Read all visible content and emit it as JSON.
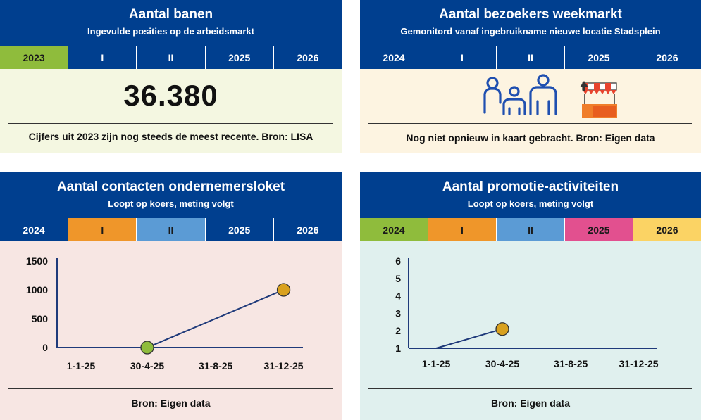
{
  "panels": {
    "jobs": {
      "title": "Aantal banen",
      "subtitle": "Ingevulde posities op de arbeidsmarkt",
      "tabs": [
        {
          "label": "2023",
          "color": "#8fbc3c",
          "text_dark": true
        },
        {
          "label": "I",
          "color": "#003f8f",
          "text_dark": false
        },
        {
          "label": "II",
          "color": "#003f8f",
          "text_dark": false
        },
        {
          "label": "2025",
          "color": "#003f8f",
          "text_dark": false
        },
        {
          "label": "2026",
          "color": "#003f8f",
          "text_dark": false
        }
      ],
      "value": "36.380",
      "note": "Cijfers uit 2023 zijn nog steeds de meest recente. Bron: LISA"
    },
    "market": {
      "title": "Aantal bezoekers weekmarkt",
      "subtitle": "Gemonitord vanaf ingebruikname nieuwe locatie Stadsplein",
      "tabs": [
        {
          "label": "2024",
          "color": "#003f8f",
          "text_dark": false
        },
        {
          "label": "I",
          "color": "#003f8f",
          "text_dark": false
        },
        {
          "label": "II",
          "color": "#003f8f",
          "text_dark": false
        },
        {
          "label": "2025",
          "color": "#003f8f",
          "text_dark": false
        },
        {
          "label": "2026",
          "color": "#003f8f",
          "text_dark": false
        }
      ],
      "icons": [
        "people-group-icon",
        "market-stall-icon"
      ],
      "note": "Nog niet opnieuw in kaart gebracht. Bron: Eigen data"
    },
    "contacts": {
      "title": "Aantal contacten ondernemersloket",
      "subtitle": "Loopt op koers, meting volgt",
      "tabs": [
        {
          "label": "2024",
          "color": "#003f8f",
          "text_dark": false
        },
        {
          "label": "I",
          "color": "#ef962a",
          "text_dark": true
        },
        {
          "label": "II",
          "color": "#5b9bd5",
          "text_dark": true
        },
        {
          "label": "2025",
          "color": "#003f8f",
          "text_dark": false
        },
        {
          "label": "2026",
          "color": "#003f8f",
          "text_dark": false
        }
      ],
      "note": "Bron: Eigen data"
    },
    "promo": {
      "title": "Aantal promotie-activiteiten",
      "subtitle": "Loopt op koers, meting volgt",
      "tabs": [
        {
          "label": "2024",
          "color": "#8fbc3c",
          "text_dark": true
        },
        {
          "label": "I",
          "color": "#ef962a",
          "text_dark": true
        },
        {
          "label": "II",
          "color": "#5b9bd5",
          "text_dark": true
        },
        {
          "label": "2025",
          "color": "#e2508f",
          "text_dark": true
        },
        {
          "label": "2026",
          "color": "#fbd364",
          "text_dark": true
        }
      ],
      "note": "Bron: Eigen data"
    }
  },
  "colors": {
    "header": "#003f8f",
    "line": "#1f3a7a",
    "marker_green": "#8fbc3c",
    "marker_orange": "#d9a11e"
  },
  "chart_data": [
    {
      "type": "line",
      "title": "Aantal contacten ondernemersloket",
      "categories": [
        "1-1-25",
        "30-4-25",
        "31-8-25",
        "31-12-25"
      ],
      "x": [
        0,
        119,
        242,
        364
      ],
      "ylim": [
        0,
        1500
      ],
      "yticks": [
        0,
        500,
        1000,
        1500
      ],
      "series": [
        {
          "name": "contacten",
          "points": [
            {
              "x": 0,
              "y": 0
            },
            {
              "x": 119,
              "y": 0
            },
            {
              "x": 364,
              "y": 1000
            }
          ]
        }
      ],
      "markers": [
        {
          "x": 119,
          "y": 0,
          "color": "#8fbc3c"
        },
        {
          "x": 364,
          "y": 1000,
          "color": "#d9a11e"
        }
      ]
    },
    {
      "type": "line",
      "title": "Aantal promotie-activiteiten",
      "categories": [
        "1-1-25",
        "30-4-25",
        "31-8-25",
        "31-12-25"
      ],
      "x": [
        0,
        119,
        242,
        364
      ],
      "ylim": [
        1,
        6
      ],
      "yticks": [
        1,
        2,
        3,
        4,
        5,
        6
      ],
      "series": [
        {
          "name": "activiteiten",
          "points": [
            {
              "x": 0,
              "y": 1
            },
            {
              "x": 119,
              "y": 2.1
            }
          ]
        }
      ],
      "markers": [
        {
          "x": 119,
          "y": 2.1,
          "color": "#d9a11e"
        }
      ]
    }
  ]
}
